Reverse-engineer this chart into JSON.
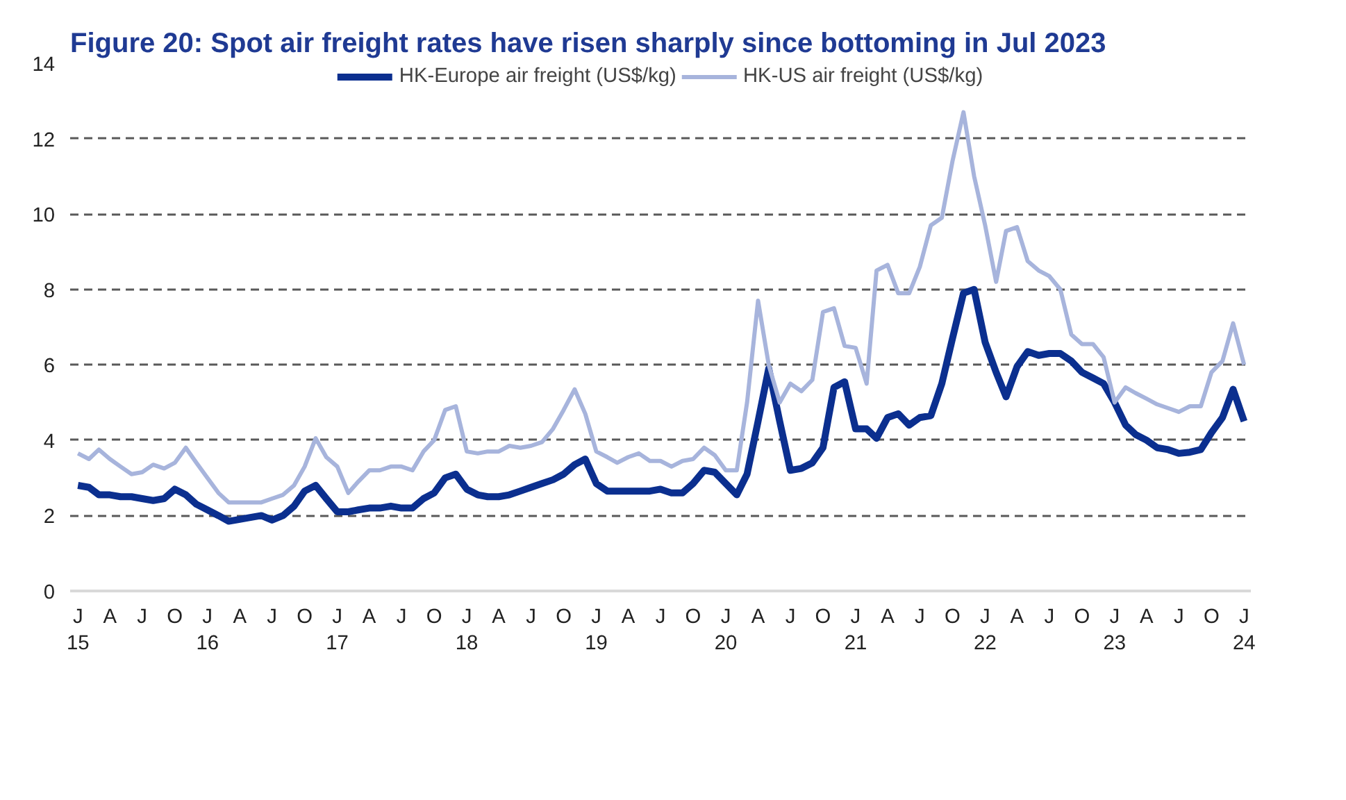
{
  "chart_data": {
    "type": "line",
    "title": "Figure 20: Spot air freight rates have risen sharply since bottoming in Jul 2023",
    "x": [
      "2015-01",
      "2015-02",
      "2015-03",
      "2015-04",
      "2015-05",
      "2015-06",
      "2015-07",
      "2015-08",
      "2015-09",
      "2015-10",
      "2015-11",
      "2015-12",
      "2016-01",
      "2016-02",
      "2016-03",
      "2016-04",
      "2016-05",
      "2016-06",
      "2016-07",
      "2016-08",
      "2016-09",
      "2016-10",
      "2016-11",
      "2016-12",
      "2017-01",
      "2017-02",
      "2017-03",
      "2017-04",
      "2017-05",
      "2017-06",
      "2017-07",
      "2017-08",
      "2017-09",
      "2017-10",
      "2017-11",
      "2017-12",
      "2018-01",
      "2018-02",
      "2018-03",
      "2018-04",
      "2018-05",
      "2018-06",
      "2018-07",
      "2018-08",
      "2018-09",
      "2018-10",
      "2018-11",
      "2018-12",
      "2019-01",
      "2019-02",
      "2019-03",
      "2019-04",
      "2019-05",
      "2019-06",
      "2019-07",
      "2019-08",
      "2019-09",
      "2019-10",
      "2019-11",
      "2019-12",
      "2020-01",
      "2020-02",
      "2020-03",
      "2020-04",
      "2020-05",
      "2020-06",
      "2020-07",
      "2020-08",
      "2020-09",
      "2020-10",
      "2020-11",
      "2020-12",
      "2021-01",
      "2021-02",
      "2021-03",
      "2021-04",
      "2021-05",
      "2021-06",
      "2021-07",
      "2021-08",
      "2021-09",
      "2021-10",
      "2021-11",
      "2021-12",
      "2022-01",
      "2022-02",
      "2022-03",
      "2022-04",
      "2022-05",
      "2022-06",
      "2022-07",
      "2022-08",
      "2022-09",
      "2022-10",
      "2022-11",
      "2022-12",
      "2023-01",
      "2023-02",
      "2023-03",
      "2023-04",
      "2023-05",
      "2023-06",
      "2023-07",
      "2023-08",
      "2023-09",
      "2023-10",
      "2023-11",
      "2023-12",
      "2024-01"
    ],
    "series": [
      {
        "name": "HK-Europe air freight (US$/kg)",
        "color": "#0b2f8f",
        "values": [
          2.8,
          2.75,
          2.55,
          2.55,
          2.5,
          2.5,
          2.45,
          2.4,
          2.45,
          2.7,
          2.55,
          2.3,
          2.15,
          2.0,
          1.85,
          1.9,
          1.95,
          2.0,
          1.88,
          2.0,
          2.25,
          2.65,
          2.8,
          2.45,
          2.1,
          2.1,
          2.15,
          2.2,
          2.2,
          2.25,
          2.2,
          2.2,
          2.45,
          2.6,
          3.0,
          3.1,
          2.7,
          2.55,
          2.5,
          2.5,
          2.55,
          2.65,
          2.75,
          2.85,
          2.95,
          3.1,
          3.35,
          3.5,
          2.85,
          2.65,
          2.65,
          2.65,
          2.65,
          2.65,
          2.7,
          2.6,
          2.6,
          2.85,
          3.2,
          3.15,
          2.85,
          2.55,
          3.1,
          4.5,
          5.9,
          4.5,
          3.2,
          3.25,
          3.4,
          3.8,
          5.4,
          5.55,
          4.3,
          4.3,
          4.05,
          4.6,
          4.7,
          4.4,
          4.6,
          4.65,
          5.5,
          6.7,
          7.9,
          8.0,
          6.6,
          5.8,
          5.15,
          5.95,
          6.35,
          6.25,
          6.3,
          6.3,
          6.1,
          5.8,
          5.65,
          5.5,
          5.0,
          4.4,
          4.15,
          4.0,
          3.8,
          3.75,
          3.65,
          3.68,
          3.75,
          4.2,
          4.6,
          5.35,
          4.5
        ]
      },
      {
        "name": "HK-US air freight (US$/kg)",
        "color": "#a7b4dc",
        "values": [
          3.65,
          3.5,
          3.75,
          3.5,
          3.3,
          3.1,
          3.15,
          3.35,
          3.25,
          3.4,
          3.8,
          3.4,
          3.0,
          2.6,
          2.35,
          2.35,
          2.35,
          2.35,
          2.45,
          2.55,
          2.8,
          3.3,
          4.05,
          3.55,
          3.3,
          2.6,
          2.9,
          3.2,
          3.2,
          3.3,
          3.3,
          3.2,
          3.7,
          4.0,
          4.8,
          4.9,
          3.7,
          3.65,
          3.7,
          3.7,
          3.85,
          3.8,
          3.85,
          3.95,
          4.3,
          4.8,
          5.35,
          4.7,
          3.7,
          3.55,
          3.4,
          3.55,
          3.65,
          3.45,
          3.45,
          3.3,
          3.45,
          3.5,
          3.8,
          3.6,
          3.2,
          3.2,
          5.0,
          7.7,
          6.0,
          5.0,
          5.5,
          5.3,
          5.6,
          7.4,
          7.5,
          6.5,
          6.45,
          5.5,
          8.5,
          8.65,
          7.9,
          7.9,
          8.6,
          9.7,
          9.9,
          11.4,
          12.7,
          11.0,
          9.7,
          8.2,
          9.55,
          9.65,
          8.75,
          8.5,
          8.35,
          8.0,
          6.8,
          6.55,
          6.55,
          6.2,
          5.0,
          5.4,
          5.25,
          5.1,
          4.95,
          4.85,
          4.75,
          4.9,
          4.9,
          5.8,
          6.1,
          7.1,
          6.0
        ]
      }
    ],
    "xlim": [
      "2014-12-10",
      "2024-01-20"
    ],
    "xticks": [
      {
        "value": "2015-01",
        "label": "J\n15"
      },
      {
        "value": "2015-04",
        "label": "A"
      },
      {
        "value": "2015-07",
        "label": "J"
      },
      {
        "value": "2015-10",
        "label": "O"
      },
      {
        "value": "2016-01",
        "label": "J\n16"
      },
      {
        "value": "2016-04",
        "label": "A"
      },
      {
        "value": "2016-07",
        "label": "J"
      },
      {
        "value": "2016-10",
        "label": "O"
      },
      {
        "value": "2017-01",
        "label": "J\n17"
      },
      {
        "value": "2017-04",
        "label": "A"
      },
      {
        "value": "2017-07",
        "label": "J"
      },
      {
        "value": "2017-10",
        "label": "O"
      },
      {
        "value": "2018-01",
        "label": "J\n18"
      },
      {
        "value": "2018-04",
        "label": "A"
      },
      {
        "value": "2018-07",
        "label": "J"
      },
      {
        "value": "2018-10",
        "label": "O"
      },
      {
        "value": "2019-01",
        "label": "J\n19"
      },
      {
        "value": "2019-04",
        "label": "A"
      },
      {
        "value": "2019-07",
        "label": "J"
      },
      {
        "value": "2019-10",
        "label": "O"
      },
      {
        "value": "2020-01",
        "label": "J\n20"
      },
      {
        "value": "2020-04",
        "label": "A"
      },
      {
        "value": "2020-07",
        "label": "J"
      },
      {
        "value": "2020-10",
        "label": "O"
      },
      {
        "value": "2021-01",
        "label": "J\n21"
      },
      {
        "value": "2021-04",
        "label": "A"
      },
      {
        "value": "2021-07",
        "label": "J"
      },
      {
        "value": "2021-10",
        "label": "O"
      },
      {
        "value": "2022-01",
        "label": "J\n22"
      },
      {
        "value": "2022-04",
        "label": "A"
      },
      {
        "value": "2022-07",
        "label": "J"
      },
      {
        "value": "2022-10",
        "label": "O"
      },
      {
        "value": "2023-01",
        "label": "J\n23"
      },
      {
        "value": "2023-04",
        "label": "A"
      },
      {
        "value": "2023-07",
        "label": "J"
      },
      {
        "value": "2023-10",
        "label": "O"
      },
      {
        "value": "2024-01",
        "label": "J\n24"
      }
    ],
    "ylim": [
      0,
      14
    ],
    "yticks": [
      0,
      2,
      4,
      6,
      8,
      10,
      12,
      14
    ],
    "grid": "y",
    "legend": "top",
    "line_style": "solid"
  }
}
